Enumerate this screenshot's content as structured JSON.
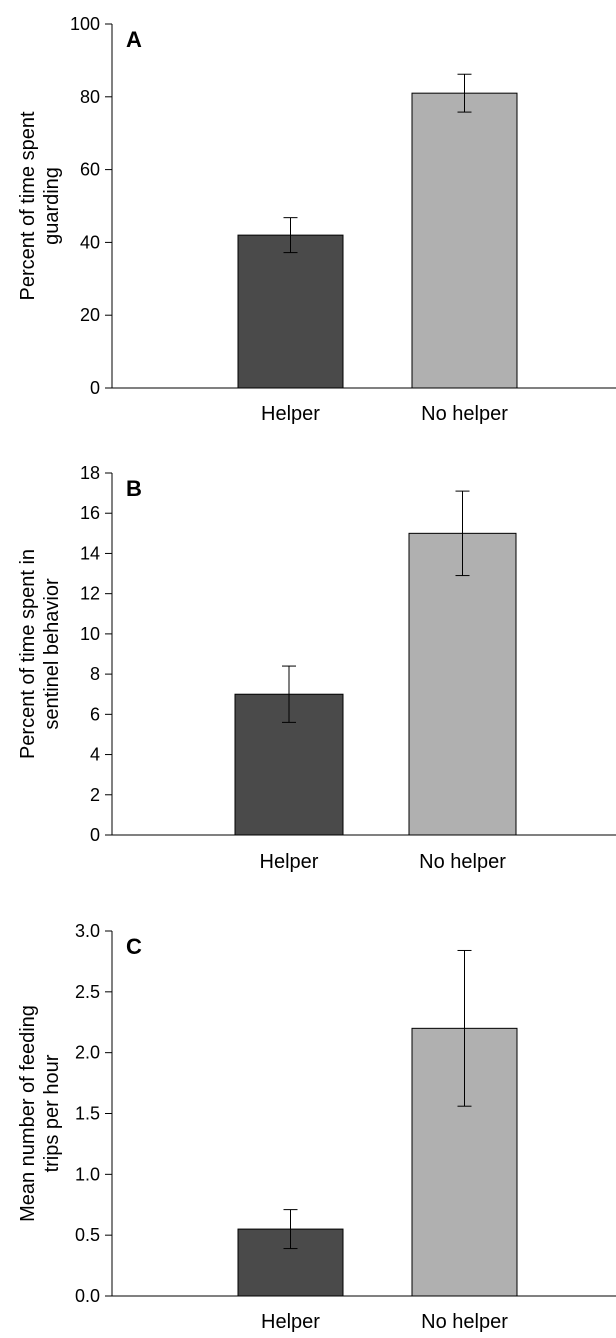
{
  "chart_data": [
    {
      "type": "bar",
      "panel_label": "A",
      "categories": [
        "Helper",
        "No helper"
      ],
      "values": [
        42,
        81
      ],
      "errors": [
        4.8,
        5.2
      ],
      "ylabel_lines": [
        "Percent of time spent",
        "guarding"
      ],
      "ylim": [
        0,
        100
      ],
      "yticks": [
        "0",
        "20",
        "40",
        "60",
        "80",
        "100"
      ],
      "colors": [
        "#4a4a4a",
        "#b0b0b0"
      ]
    },
    {
      "type": "bar",
      "panel_label": "B",
      "categories": [
        "Helper",
        "No helper"
      ],
      "values": [
        7,
        15
      ],
      "errors": [
        1.4,
        2.1
      ],
      "ylabel_lines": [
        "Percent of time spent in",
        "sentinel behavior"
      ],
      "ylim": [
        0,
        18
      ],
      "yticks": [
        "0",
        "2",
        "4",
        "6",
        "8",
        "10",
        "12",
        "14",
        "16",
        "18"
      ],
      "colors": [
        "#4a4a4a",
        "#b0b0b0"
      ]
    },
    {
      "type": "bar",
      "panel_label": "C",
      "categories": [
        "Helper",
        "No helper"
      ],
      "values": [
        0.55,
        2.2
      ],
      "errors": [
        0.16,
        0.64
      ],
      "ylabel_lines": [
        "Mean number of feeding",
        "trips per hour"
      ],
      "ylim": [
        0,
        3.0
      ],
      "yticks": [
        "0.0",
        "0.5",
        "1.0",
        "1.5",
        "2.0",
        "2.5",
        "3.0"
      ],
      "colors": [
        "#4a4a4a",
        "#b0b0b0"
      ]
    }
  ]
}
